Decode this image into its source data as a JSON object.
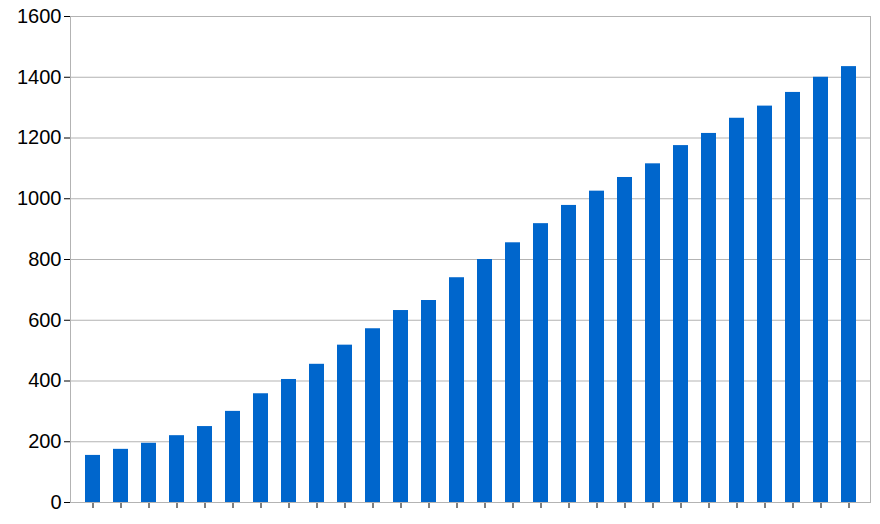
{
  "chart_data": {
    "type": "bar",
    "categories": [
      null,
      null,
      null,
      null,
      null,
      null,
      null,
      null,
      null,
      null,
      null,
      null,
      null,
      null,
      null,
      null,
      null,
      null,
      null,
      null,
      null,
      null,
      null,
      null,
      null,
      null,
      null,
      null
    ],
    "values": [
      155,
      175,
      195,
      220,
      250,
      300,
      358,
      405,
      455,
      518,
      572,
      632,
      665,
      740,
      800,
      855,
      918,
      978,
      1025,
      1070,
      1115,
      1175,
      1215,
      1265,
      1305,
      1350,
      1400,
      1435
    ],
    "color": "#0066cc",
    "ylim": [
      0,
      1600
    ],
    "yticks": [
      0,
      200,
      400,
      600,
      800,
      1000,
      1200,
      1400,
      1600
    ],
    "grid": true
  }
}
